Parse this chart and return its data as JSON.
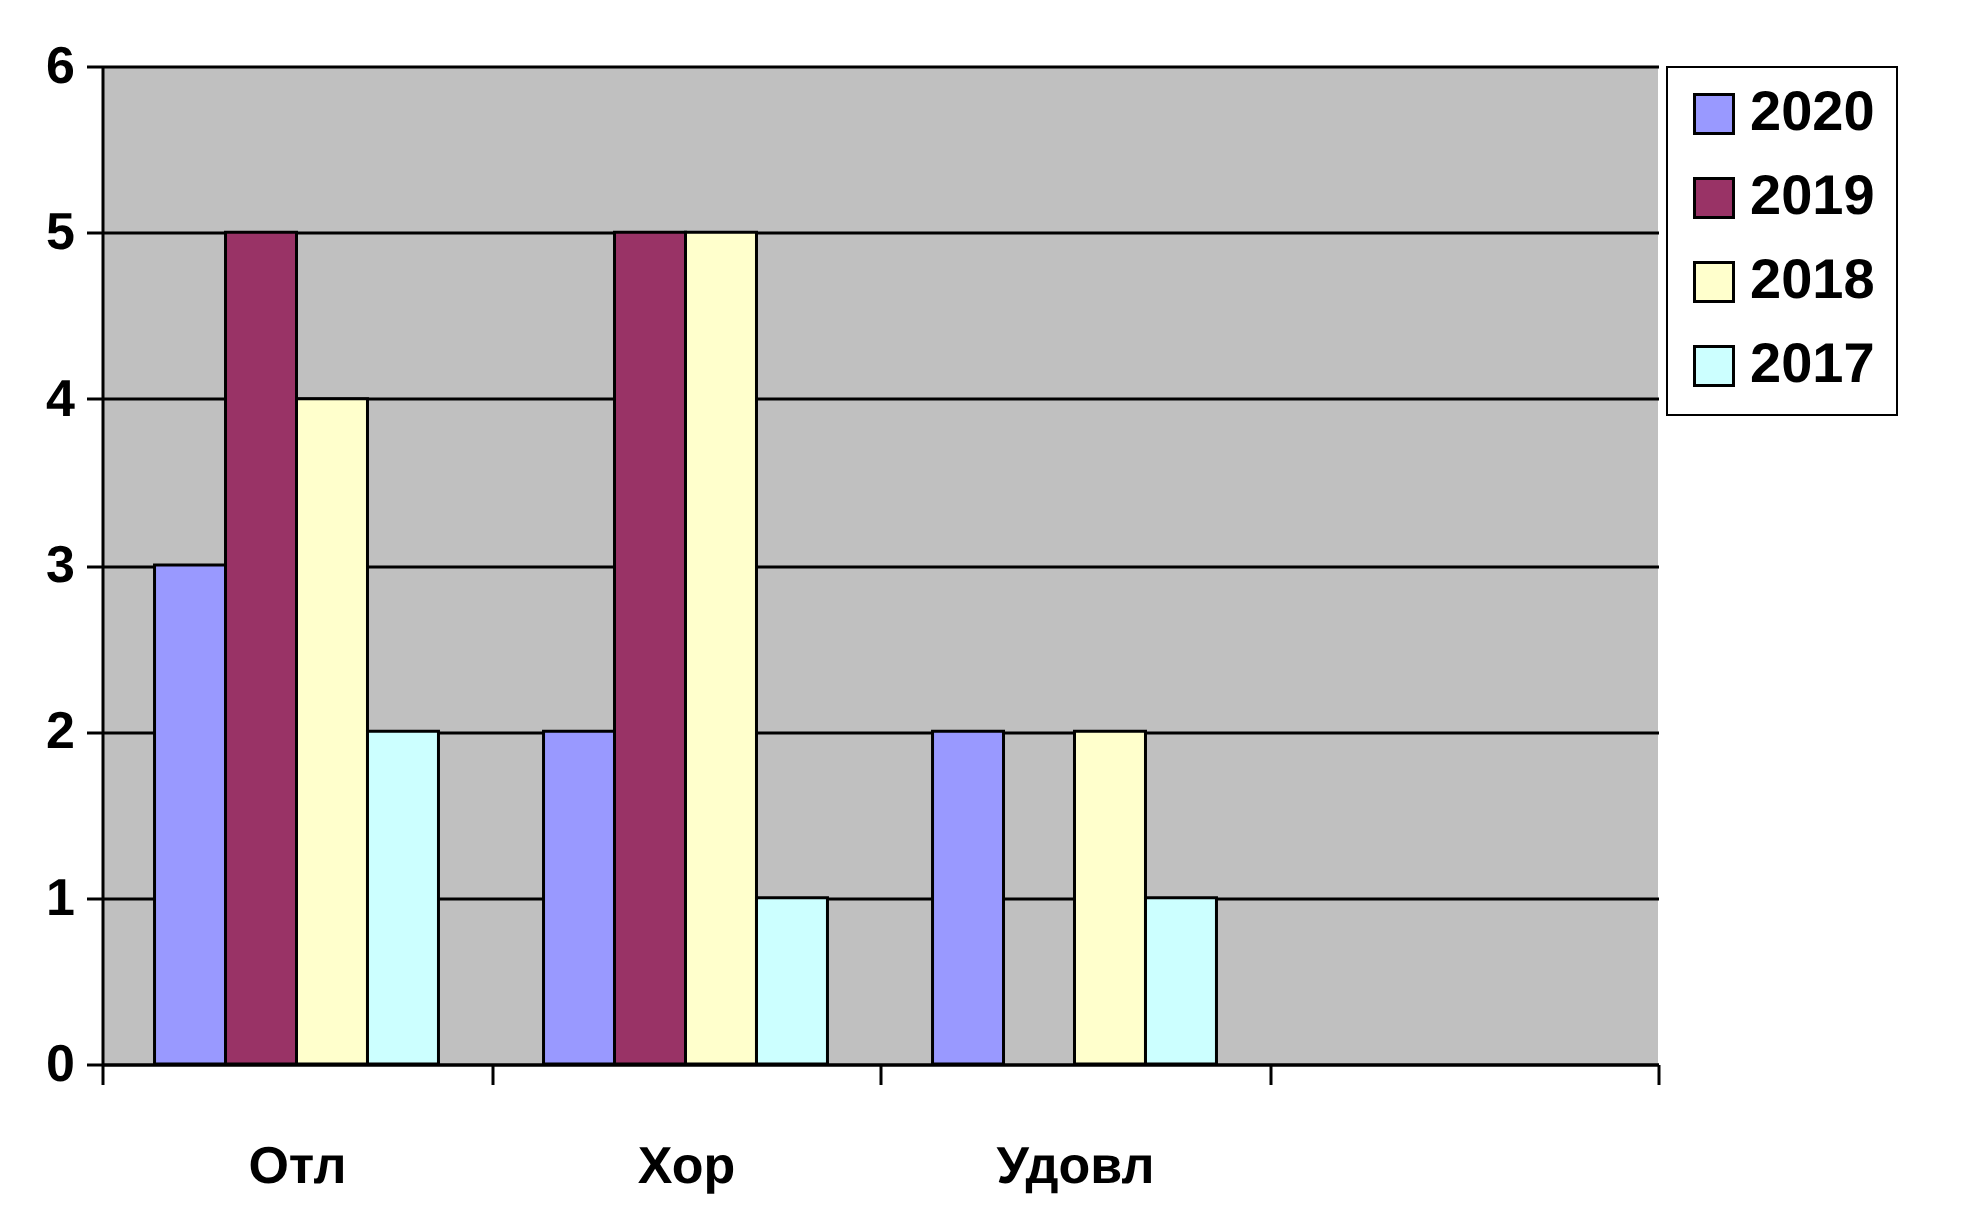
{
  "chart_data": {
    "type": "bar",
    "categories": [
      "Отл",
      "Хор",
      "Удовл",
      null
    ],
    "series": [
      {
        "name": "2020",
        "color": "#9999ff",
        "values": [
          3,
          2,
          2,
          null
        ]
      },
      {
        "name": "2019",
        "color": "#993366",
        "values": [
          5,
          5,
          null,
          null
        ]
      },
      {
        "name": "2018",
        "color": "#ffffcc",
        "values": [
          4,
          5,
          2,
          null
        ]
      },
      {
        "name": "2017",
        "color": "#ccffff",
        "values": [
          2,
          1,
          1,
          null
        ]
      }
    ],
    "ylim": [
      0,
      6
    ],
    "yticks": [
      0,
      1,
      2,
      3,
      4,
      5,
      6
    ],
    "grid": "y",
    "legend": "right"
  }
}
